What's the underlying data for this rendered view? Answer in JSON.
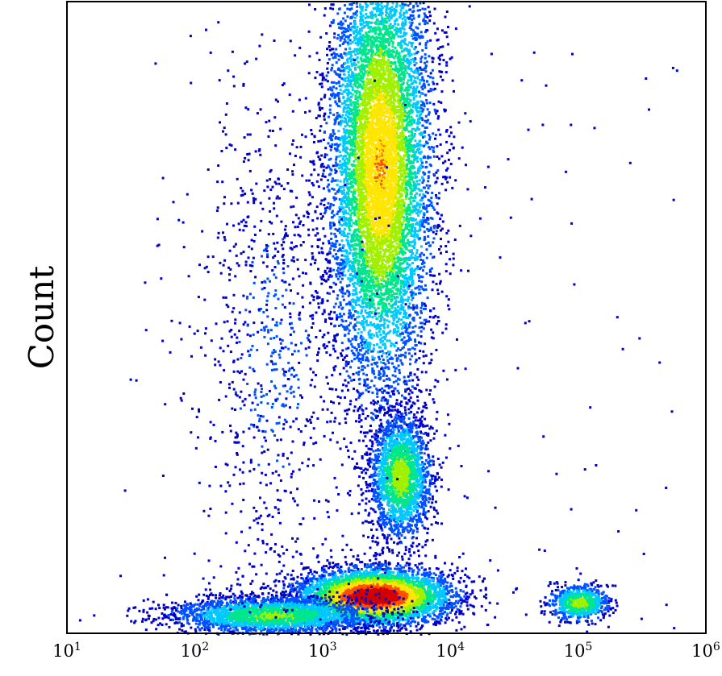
{
  "chart_data": {
    "type": "scatter",
    "style": "flow cytometry density dot plot",
    "title": "",
    "xlabel": "",
    "ylabel": "Count",
    "x_scale": "log",
    "xlim": [
      10,
      1000000
    ],
    "x_ticks": [
      {
        "value": 10,
        "base": "10",
        "exp": "1"
      },
      {
        "value": 100,
        "base": "10",
        "exp": "2"
      },
      {
        "value": 1000,
        "base": "10",
        "exp": "3"
      },
      {
        "value": 10000,
        "base": "10",
        "exp": "4"
      },
      {
        "value": 100000,
        "base": "10",
        "exp": "5"
      },
      {
        "value": 1000000,
        "base": "10",
        "exp": "6"
      }
    ],
    "y_ticks": [],
    "ylim": [
      0,
      1
    ],
    "grid": false,
    "legend": "none",
    "density_colors": [
      "#0000c8",
      "#0050ff",
      "#00c8ff",
      "#00e68c",
      "#a0f000",
      "#ffe600",
      "#ff5000",
      "#d20000"
    ],
    "populations": [
      {
        "label": "",
        "x_center": 2800,
        "y_center": 0.74,
        "x_spread_decades": 0.2,
        "y_spread": 0.18,
        "peak_density": 0.72,
        "points": 9000
      },
      {
        "label": "",
        "x_center": 4000,
        "y_center": 0.25,
        "x_spread_decades": 0.12,
        "y_spread": 0.05,
        "peak_density": 0.55,
        "points": 2200
      },
      {
        "label": "",
        "x_center": 2500,
        "y_center": 0.06,
        "x_spread_decades": 0.3,
        "y_spread": 0.022,
        "peak_density": 1.0,
        "points": 5000
      },
      {
        "label": "",
        "x_center": 400,
        "y_center": 0.03,
        "x_spread_decades": 0.4,
        "y_spread": 0.015,
        "peak_density": 0.5,
        "points": 2500
      },
      {
        "label": "",
        "x_center": 100000,
        "y_center": 0.05,
        "x_spread_decades": 0.12,
        "y_spread": 0.015,
        "peak_density": 0.55,
        "points": 700
      },
      {
        "label": "",
        "x_center": 400,
        "y_center": 0.45,
        "x_spread_decades": 0.3,
        "y_spread": 0.22,
        "peak_density": 0.12,
        "points": 900
      }
    ]
  }
}
